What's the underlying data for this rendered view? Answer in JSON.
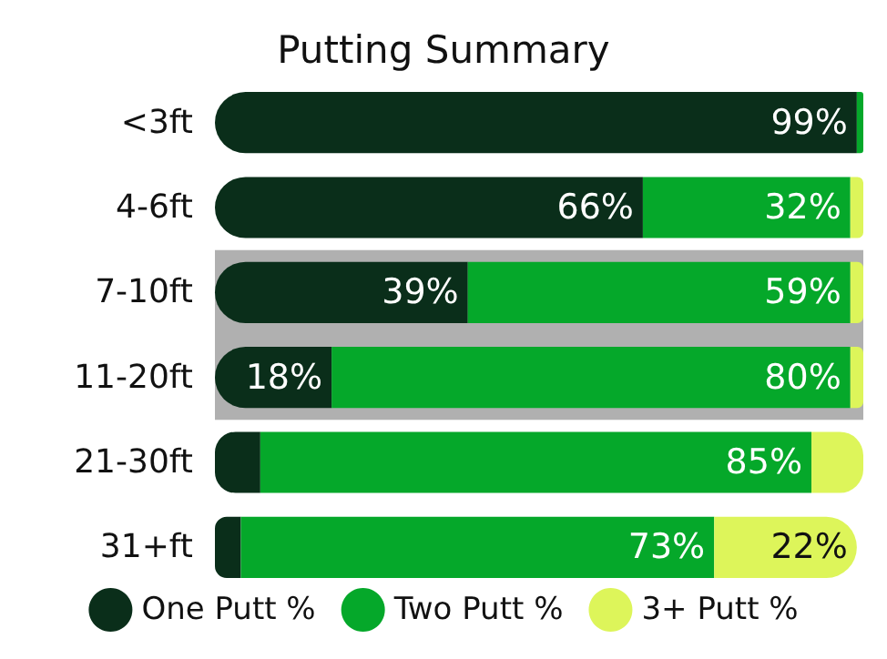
{
  "chart_data": {
    "type": "bar",
    "title": "Putting Summary",
    "orientation": "horizontal",
    "stacked": true,
    "legend": "bottom",
    "categories": [
      "<3ft",
      "4-6ft",
      "7-10ft",
      "11-20ft",
      "21-30ft",
      "31+ft"
    ],
    "series": [
      {
        "name": "One Putt %",
        "color": "#0a2e1a",
        "values": [
          99,
          66,
          39,
          18,
          7,
          4
        ],
        "value_labels": [
          "99%",
          "66%",
          "39%",
          "18%",
          null,
          null
        ]
      },
      {
        "name": "Two Putt %",
        "color": "#05a82a",
        "values": [
          1,
          32,
          59,
          80,
          85,
          73
        ],
        "value_labels": [
          null,
          "32%",
          "59%",
          "80%",
          "85%",
          "73%"
        ]
      },
      {
        "name": "3+ Putt %",
        "color": "#ddf55a",
        "values": [
          0,
          2,
          2,
          2,
          8,
          22
        ],
        "value_labels": [
          null,
          null,
          null,
          null,
          null,
          "22%"
        ]
      }
    ],
    "bands": [
      {
        "axis": "y",
        "from": "7-10ft",
        "to": "11-20ft",
        "color": "#b0b0b0"
      }
    ]
  }
}
